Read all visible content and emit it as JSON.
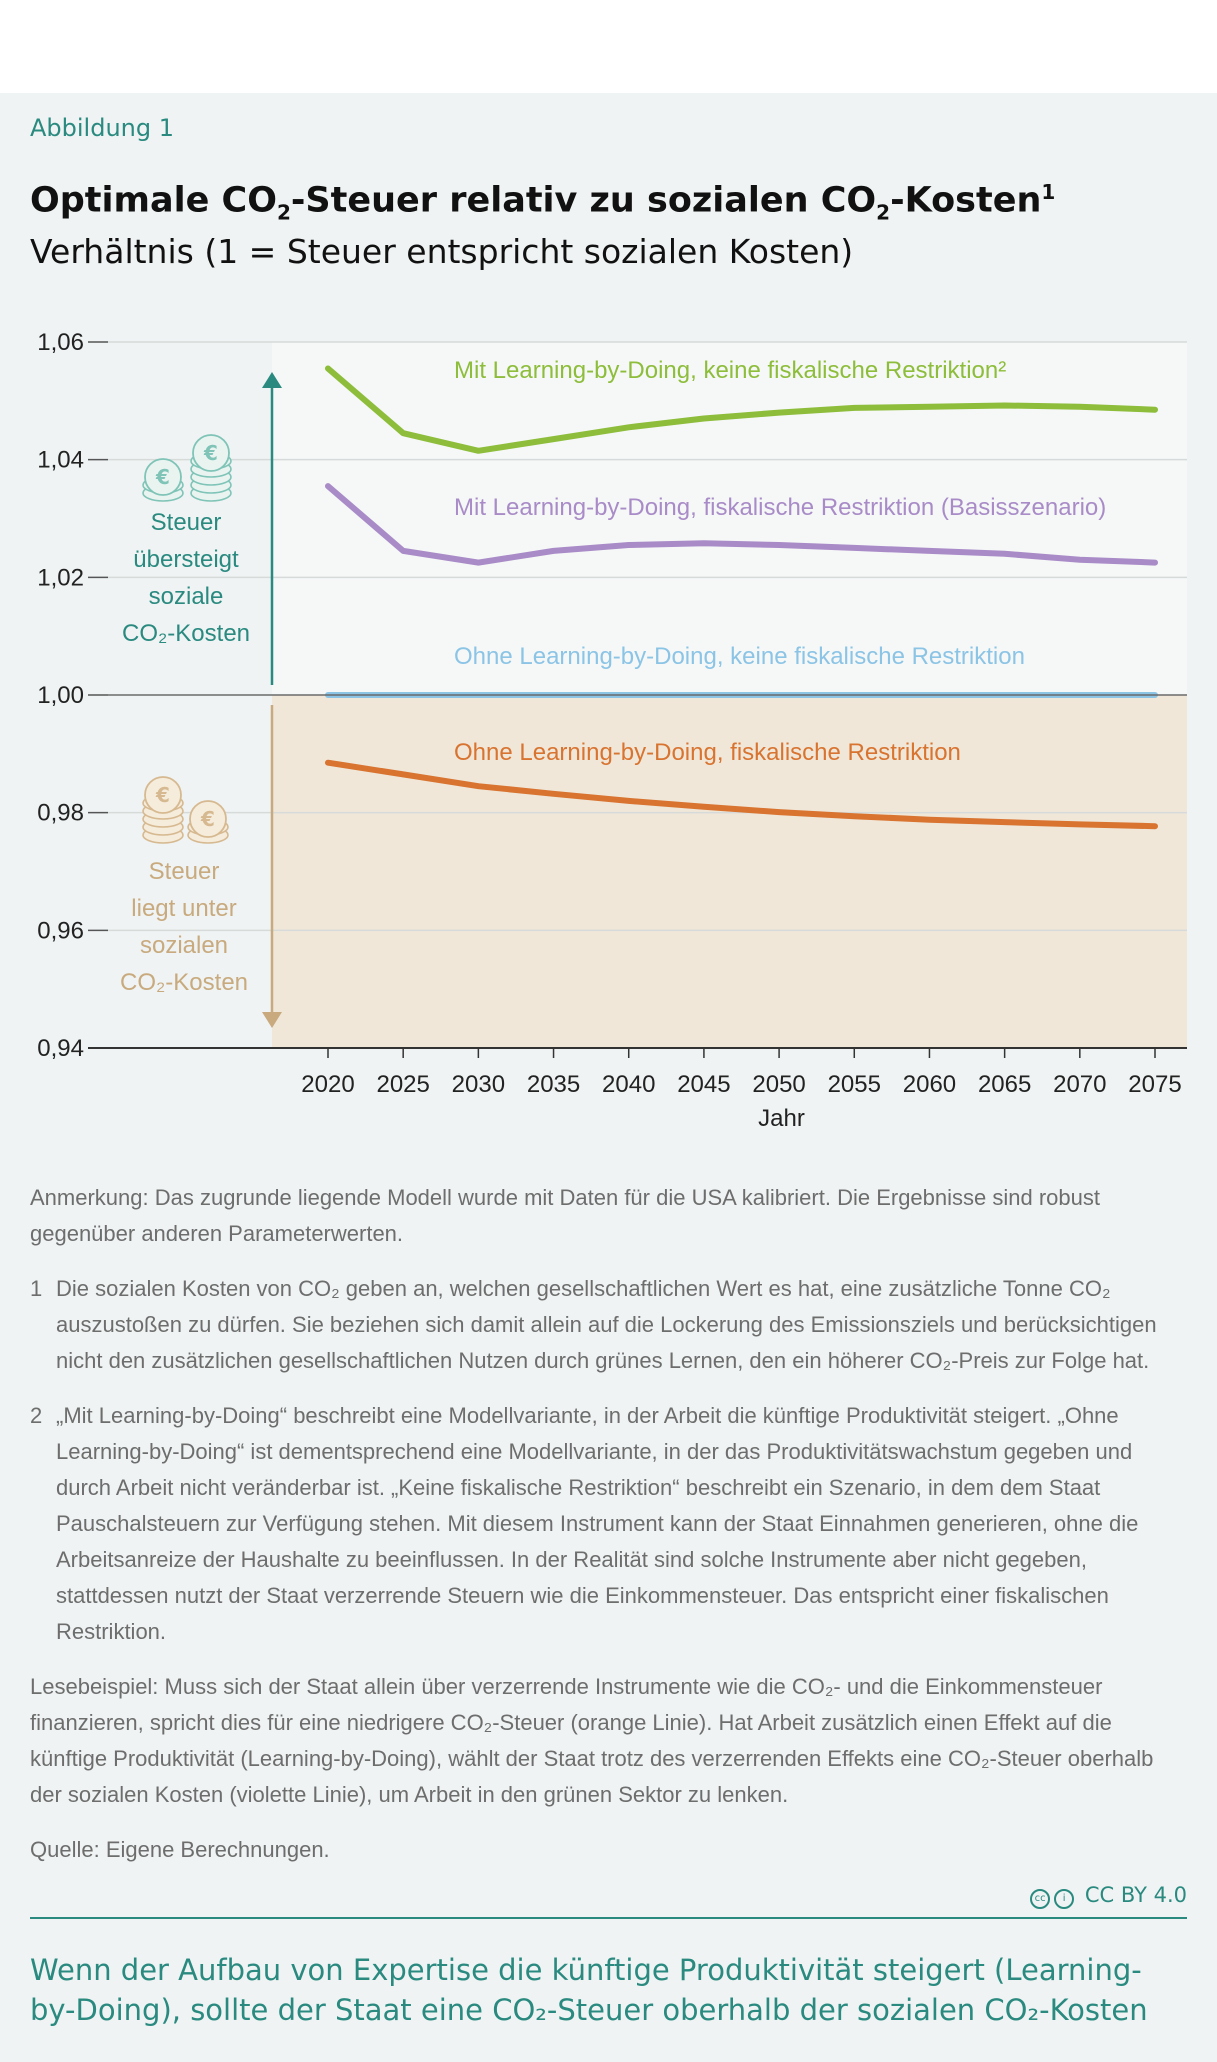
{
  "header": {
    "figure_label": "Abbildung 1",
    "title_part1": "Optimale CO",
    "title_sub": "2",
    "title_part2": "-Steuer relativ zu sozialen CO",
    "title_sub2": "2",
    "title_part3": "-Kosten",
    "title_sup": "1",
    "subtitle": "Verhältnis (1 = Steuer entspricht sozialen Kosten)"
  },
  "colors": {
    "green": "#8dbd3a",
    "violet": "#a98bc7",
    "blue": "#8cc4e6",
    "orange": "#d87430",
    "teal": "#2a8a80",
    "tan": "#c8aa7e",
    "upper_bg": "#f5f8f7",
    "lower_bg": "#f0e7d9"
  },
  "chart_data": {
    "type": "line",
    "xlabel": "Jahr",
    "ylabel": "",
    "x": [
      2020,
      2025,
      2030,
      2035,
      2040,
      2045,
      2050,
      2055,
      2060,
      2065,
      2070,
      2075
    ],
    "ylim": [
      0.94,
      1.06
    ],
    "yticks": [
      "1,06",
      "1,04",
      "1,02",
      "1,00",
      "0,98",
      "0,96",
      "0,94"
    ],
    "ytick_values": [
      1.06,
      1.04,
      1.02,
      1.0,
      0.98,
      0.96,
      0.94
    ],
    "grid": true,
    "series": [
      {
        "name": "Mit Learning-by-Doing, keine fiskalische Restriktion²",
        "color": "#8dbd3a",
        "values": [
          1.0555,
          1.0445,
          1.0415,
          1.0435,
          1.0455,
          1.047,
          1.048,
          1.0488,
          1.049,
          1.0492,
          1.049,
          1.0485
        ]
      },
      {
        "name": "Mit Learning-by-Doing, fiskalische Restriktion (Basisszenario)",
        "color": "#a98bc7",
        "values": [
          1.0355,
          1.0245,
          1.0225,
          1.0245,
          1.0255,
          1.0258,
          1.0255,
          1.025,
          1.0245,
          1.024,
          1.023,
          1.0225
        ]
      },
      {
        "name": "Ohne Learning-by-Doing, keine fiskalische Restriktion",
        "color": "#8cc4e6",
        "values": [
          1.0,
          1.0,
          1.0,
          1.0,
          1.0,
          1.0,
          1.0,
          1.0,
          1.0,
          1.0,
          1.0,
          1.0
        ]
      },
      {
        "name": "Ohne Learning-by-Doing, fiskalische Restriktion",
        "color": "#d87430",
        "values": [
          0.9885,
          0.9865,
          0.9845,
          0.9832,
          0.982,
          0.981,
          0.9801,
          0.9794,
          0.9788,
          0.9784,
          0.978,
          0.9777
        ]
      }
    ],
    "annotations": {
      "upper": [
        "Steuer",
        "übersteigt",
        "soziale",
        "CO₂-Kosten"
      ],
      "lower": [
        "Steuer",
        "liegt unter",
        "sozialen",
        "CO₂-Kosten"
      ]
    }
  },
  "notes": {
    "anmerkung": "Anmerkung: Das zugrunde liegende Modell wurde mit Daten für die USA kalibriert. Die Ergebnisse sind robust gegenüber anderen Parameterwerten.",
    "fn1_num": "1",
    "fn1": "Die sozialen Kosten von CO₂ geben an, welchen gesellschaftlichen Wert es hat, eine zusätzliche Tonne CO₂ auszustoßen zu dürfen. Sie beziehen sich damit allein auf die Lockerung des Emissionsziels und berücksichtigen nicht den zusätzlichen gesellschaftlichen Nutzen durch grünes Lernen, den ein höherer CO₂-Preis zur Folge hat.",
    "fn2_num": "2",
    "fn2": "„Mit Learning-by-Doing“ beschreibt eine Modellvariante, in der Arbeit die künftige Produktivität steigert. „Ohne Learning-by-Doing“ ist dementsprechend eine Modellvariante, in der das Produktivitätswachstum gegeben und durch Arbeit nicht veränderbar ist. „Keine fiskalische Restriktion“ beschreibt ein Szenario, in dem dem Staat Pauschalsteuern zur Verfügung stehen. Mit diesem Instrument kann der Staat Einnahmen generieren, ohne die Arbeitsanreize der Haushalte zu beeinflussen. In der Realität sind solche Instrumente aber nicht gegeben, stattdessen nutzt der Staat verzerrende Steuern wie die Einkommensteuer. Das entspricht einer fiskalischen Restriktion.",
    "lesebeispiel": "Lesebeispiel: Muss sich der Staat allein über verzerrende Instrumente wie die CO₂- und die Einkommensteuer finanzieren, spricht dies für eine niedrigere CO₂-Steuer (orange Linie). Hat Arbeit zusätzlich einen Effekt auf die künftige Produktivität (Learning-by-Doing), wählt der Staat trotz des verzerrenden Effekts eine CO₂-Steuer oberhalb der sozialen Kosten (violette Linie), um Arbeit in den grünen Sektor zu lenken.",
    "quelle": "Quelle: Eigene Berechnungen."
  },
  "footer": {
    "license_icon": "cc-icon",
    "license": "CC BY 4.0",
    "takeaway": "Wenn der Aufbau von Expertise die künftige Produktivität steigert (Learning-by-Doing), sollte der Staat eine CO₂-Steuer oberhalb der sozialen CO₂-Kosten"
  }
}
